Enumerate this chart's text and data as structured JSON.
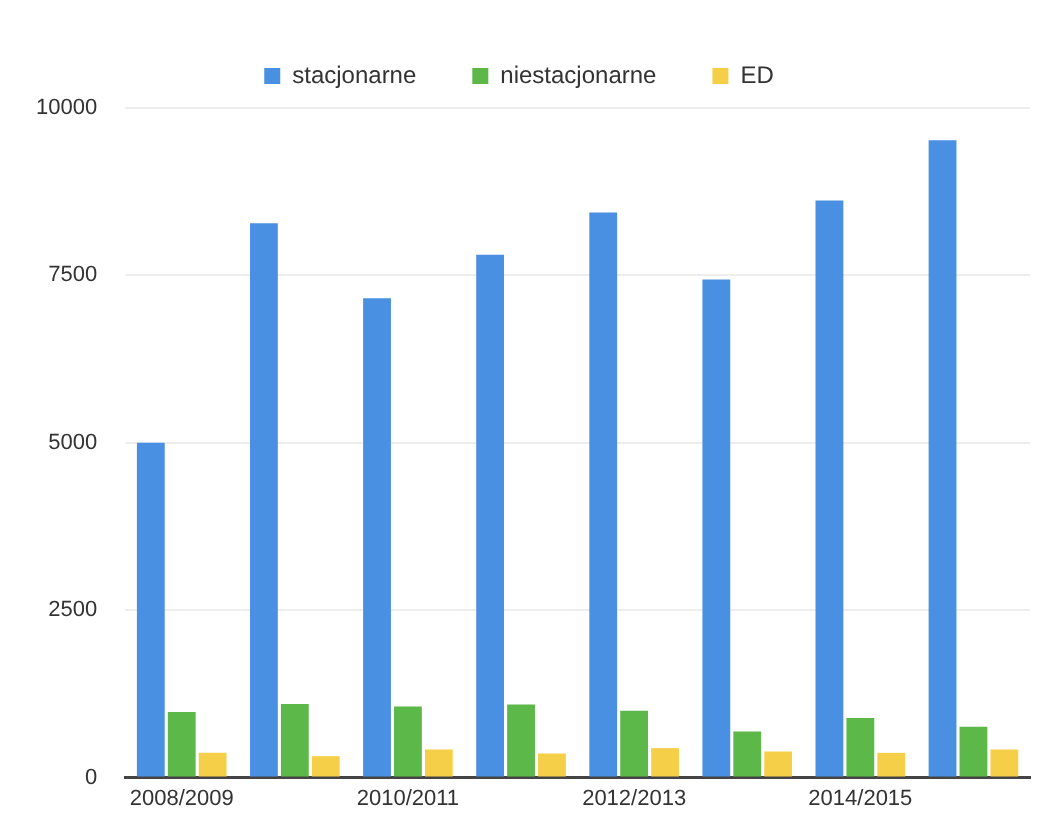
{
  "chart_data": {
    "type": "bar",
    "categories": [
      "2008/2009",
      null,
      "2010/2011",
      null,
      "2012/2013",
      null,
      "2014/2015",
      null
    ],
    "series": [
      {
        "name": "stacjonarne",
        "color": "#4a90e2",
        "values": [
          5000,
          8280,
          7160,
          7810,
          8440,
          7440,
          8620,
          9520
        ]
      },
      {
        "name": "niestacjonarne",
        "color": "#5cb848",
        "values": [
          980,
          1100,
          1060,
          1090,
          1000,
          690,
          890,
          760
        ]
      },
      {
        "name": "ED",
        "color": "#f5cf48",
        "values": [
          370,
          320,
          420,
          360,
          440,
          390,
          370,
          420
        ]
      }
    ],
    "ylim": [
      0,
      10000
    ],
    "yticks": [
      0,
      2500,
      5000,
      7500,
      10000
    ],
    "grid": "y",
    "legend": "top"
  }
}
